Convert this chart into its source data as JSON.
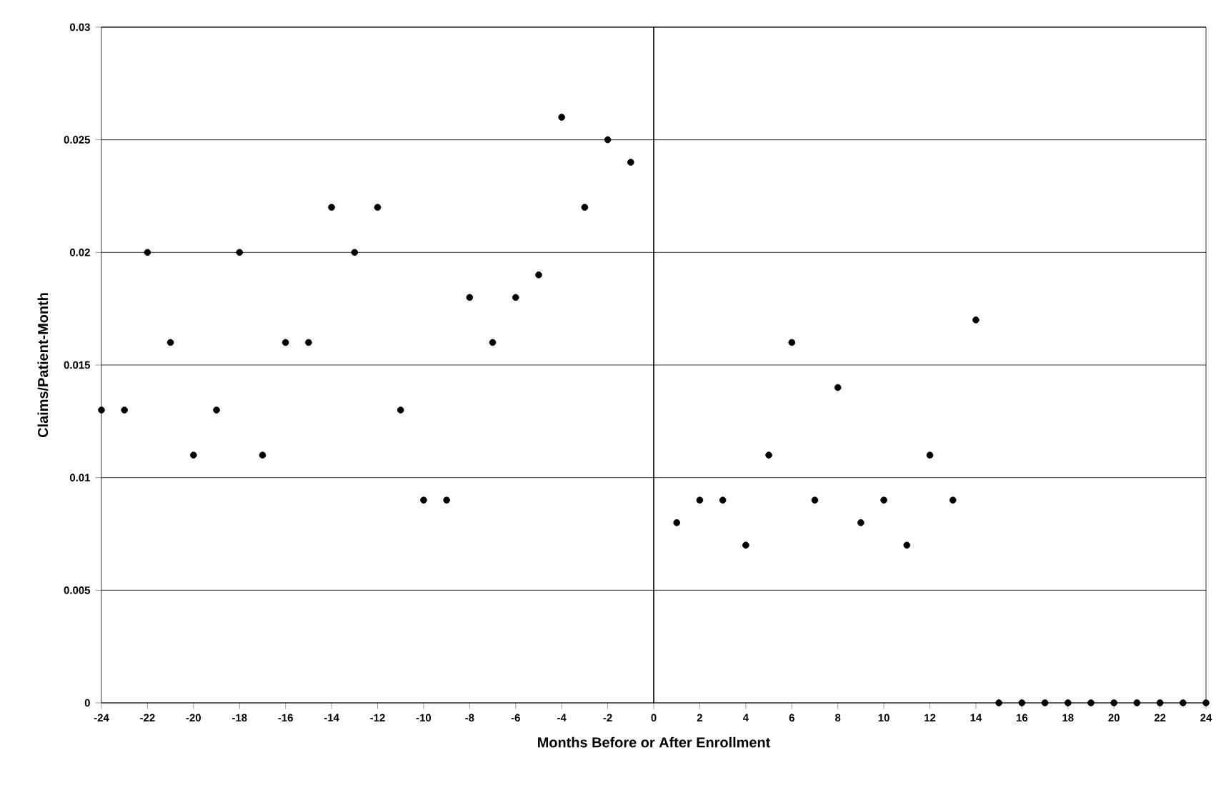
{
  "chart_data": {
    "type": "scatter",
    "xlabel": "Months Before or After Enrollment",
    "ylabel": "Claims/Patient-Month",
    "x": [
      -24,
      -23,
      -22,
      -21,
      -20,
      -19,
      -18,
      -17,
      -16,
      -15,
      -14,
      -13,
      -12,
      -11,
      -10,
      -9,
      -8,
      -7,
      -6,
      -5,
      -4,
      -3,
      -2,
      -1,
      1,
      2,
      3,
      4,
      5,
      6,
      7,
      8,
      9,
      10,
      11,
      12,
      13,
      14,
      15,
      16,
      17,
      18,
      19,
      20,
      21,
      22,
      23,
      24
    ],
    "values": [
      0.013,
      0.013,
      0.02,
      0.016,
      0.011,
      0.013,
      0.02,
      0.011,
      0.016,
      0.016,
      0.022,
      0.02,
      0.022,
      0.013,
      0.009,
      0.009,
      0.018,
      0.016,
      0.018,
      0.019,
      0.026,
      0.022,
      0.025,
      0.024,
      0.008,
      0.009,
      0.009,
      0.007,
      0.011,
      0.016,
      0.009,
      0.014,
      0.008,
      0.009,
      0.007,
      0.011,
      0.009,
      0.017,
      0,
      0,
      0,
      0,
      0,
      0,
      0,
      0,
      0,
      0
    ],
    "color": "#000000",
    "marker": "circle",
    "grid": "y",
    "xlim": [
      -24,
      24
    ],
    "xticks": [
      -24,
      -22,
      -20,
      -18,
      -16,
      -14,
      -12,
      -10,
      -8,
      -6,
      -4,
      -2,
      0,
      2,
      4,
      6,
      8,
      10,
      12,
      14,
      16,
      18,
      20,
      22,
      24
    ],
    "ylim": [
      0,
      0.03
    ],
    "yticks": [
      0,
      0.005,
      0.01,
      0.015,
      0.02,
      0.025,
      0.03
    ],
    "ref_lines": [
      {
        "axis": "x",
        "value": 0,
        "color": "#000000"
      }
    ]
  }
}
